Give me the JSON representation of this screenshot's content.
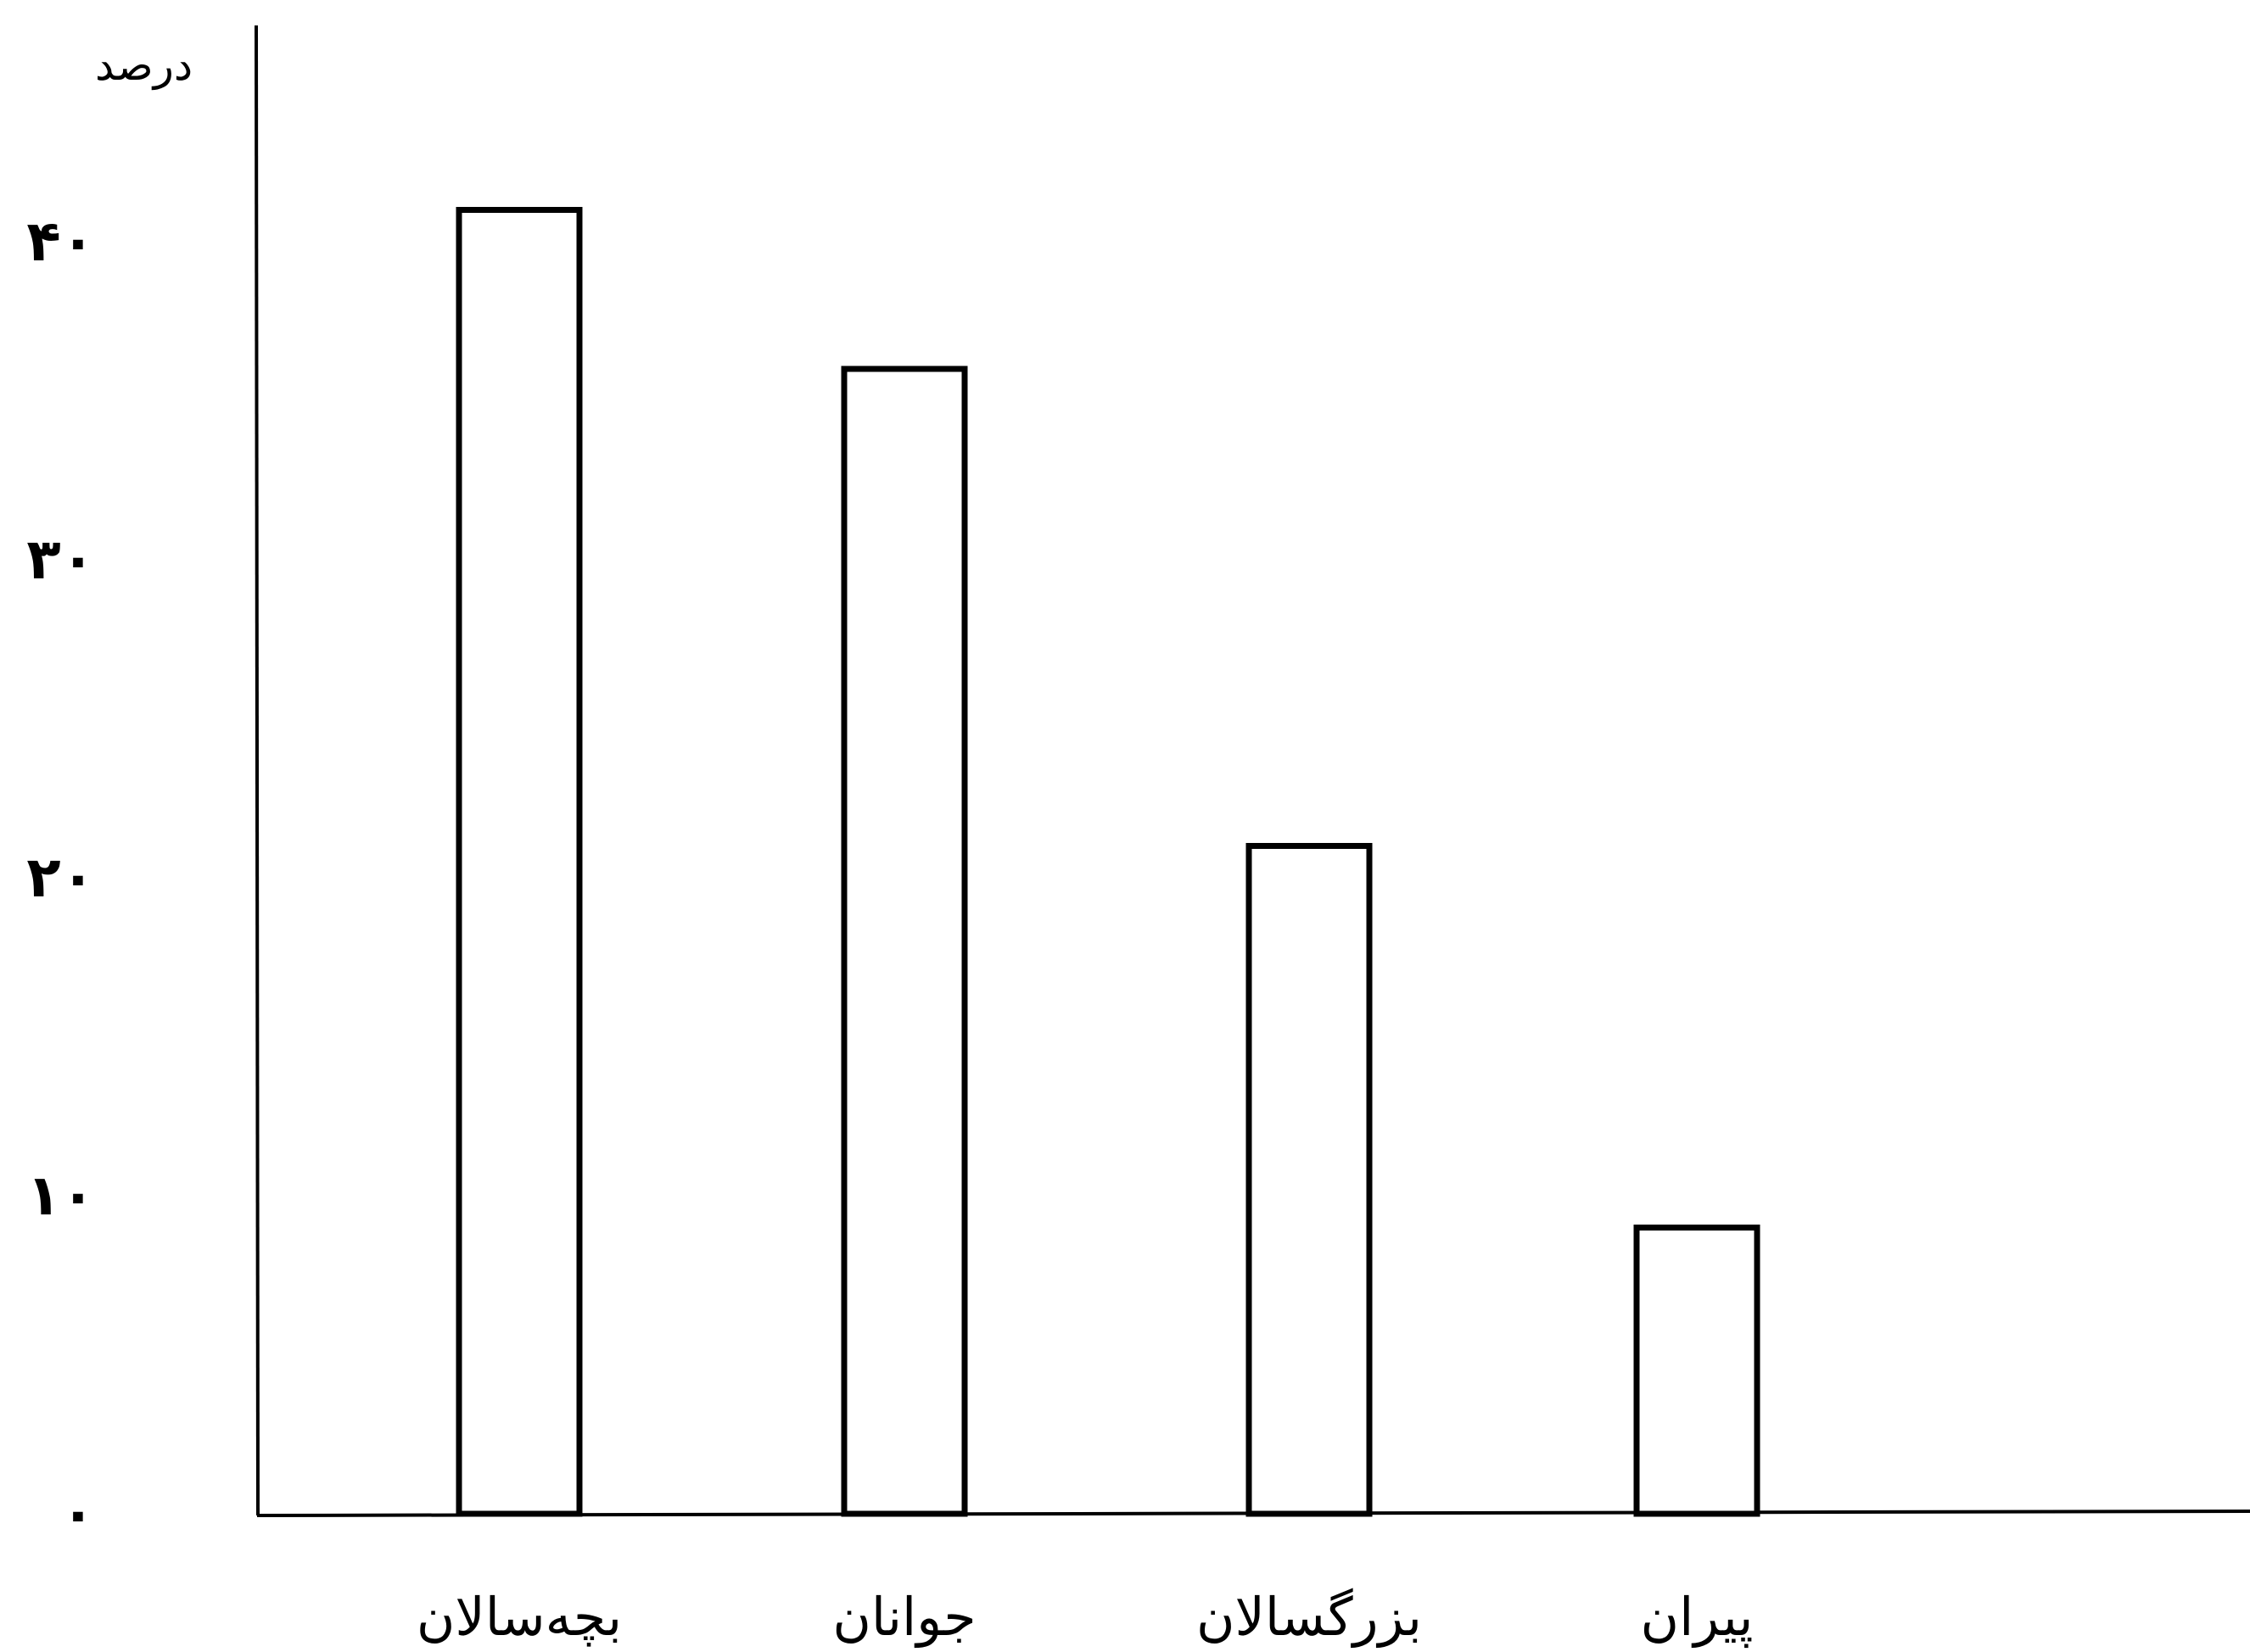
{
  "chart_data": {
    "type": "bar",
    "ylabel": "درصد",
    "categories": [
      "بچه‌سالان",
      "جوانان",
      "بزرگسالان",
      "پیران"
    ],
    "values": [
      41,
      36,
      21,
      9
    ],
    "ylim": [
      0,
      40
    ],
    "yticks": [
      0,
      10,
      20,
      30,
      40
    ],
    "ytick_labels": [
      "۰",
      "۱۰",
      "۲۰",
      "۳۰",
      "۴۰"
    ],
    "grid": false,
    "bar_fill": "#ffffff",
    "bar_stroke": "#000000",
    "axis_color": "#000000"
  }
}
